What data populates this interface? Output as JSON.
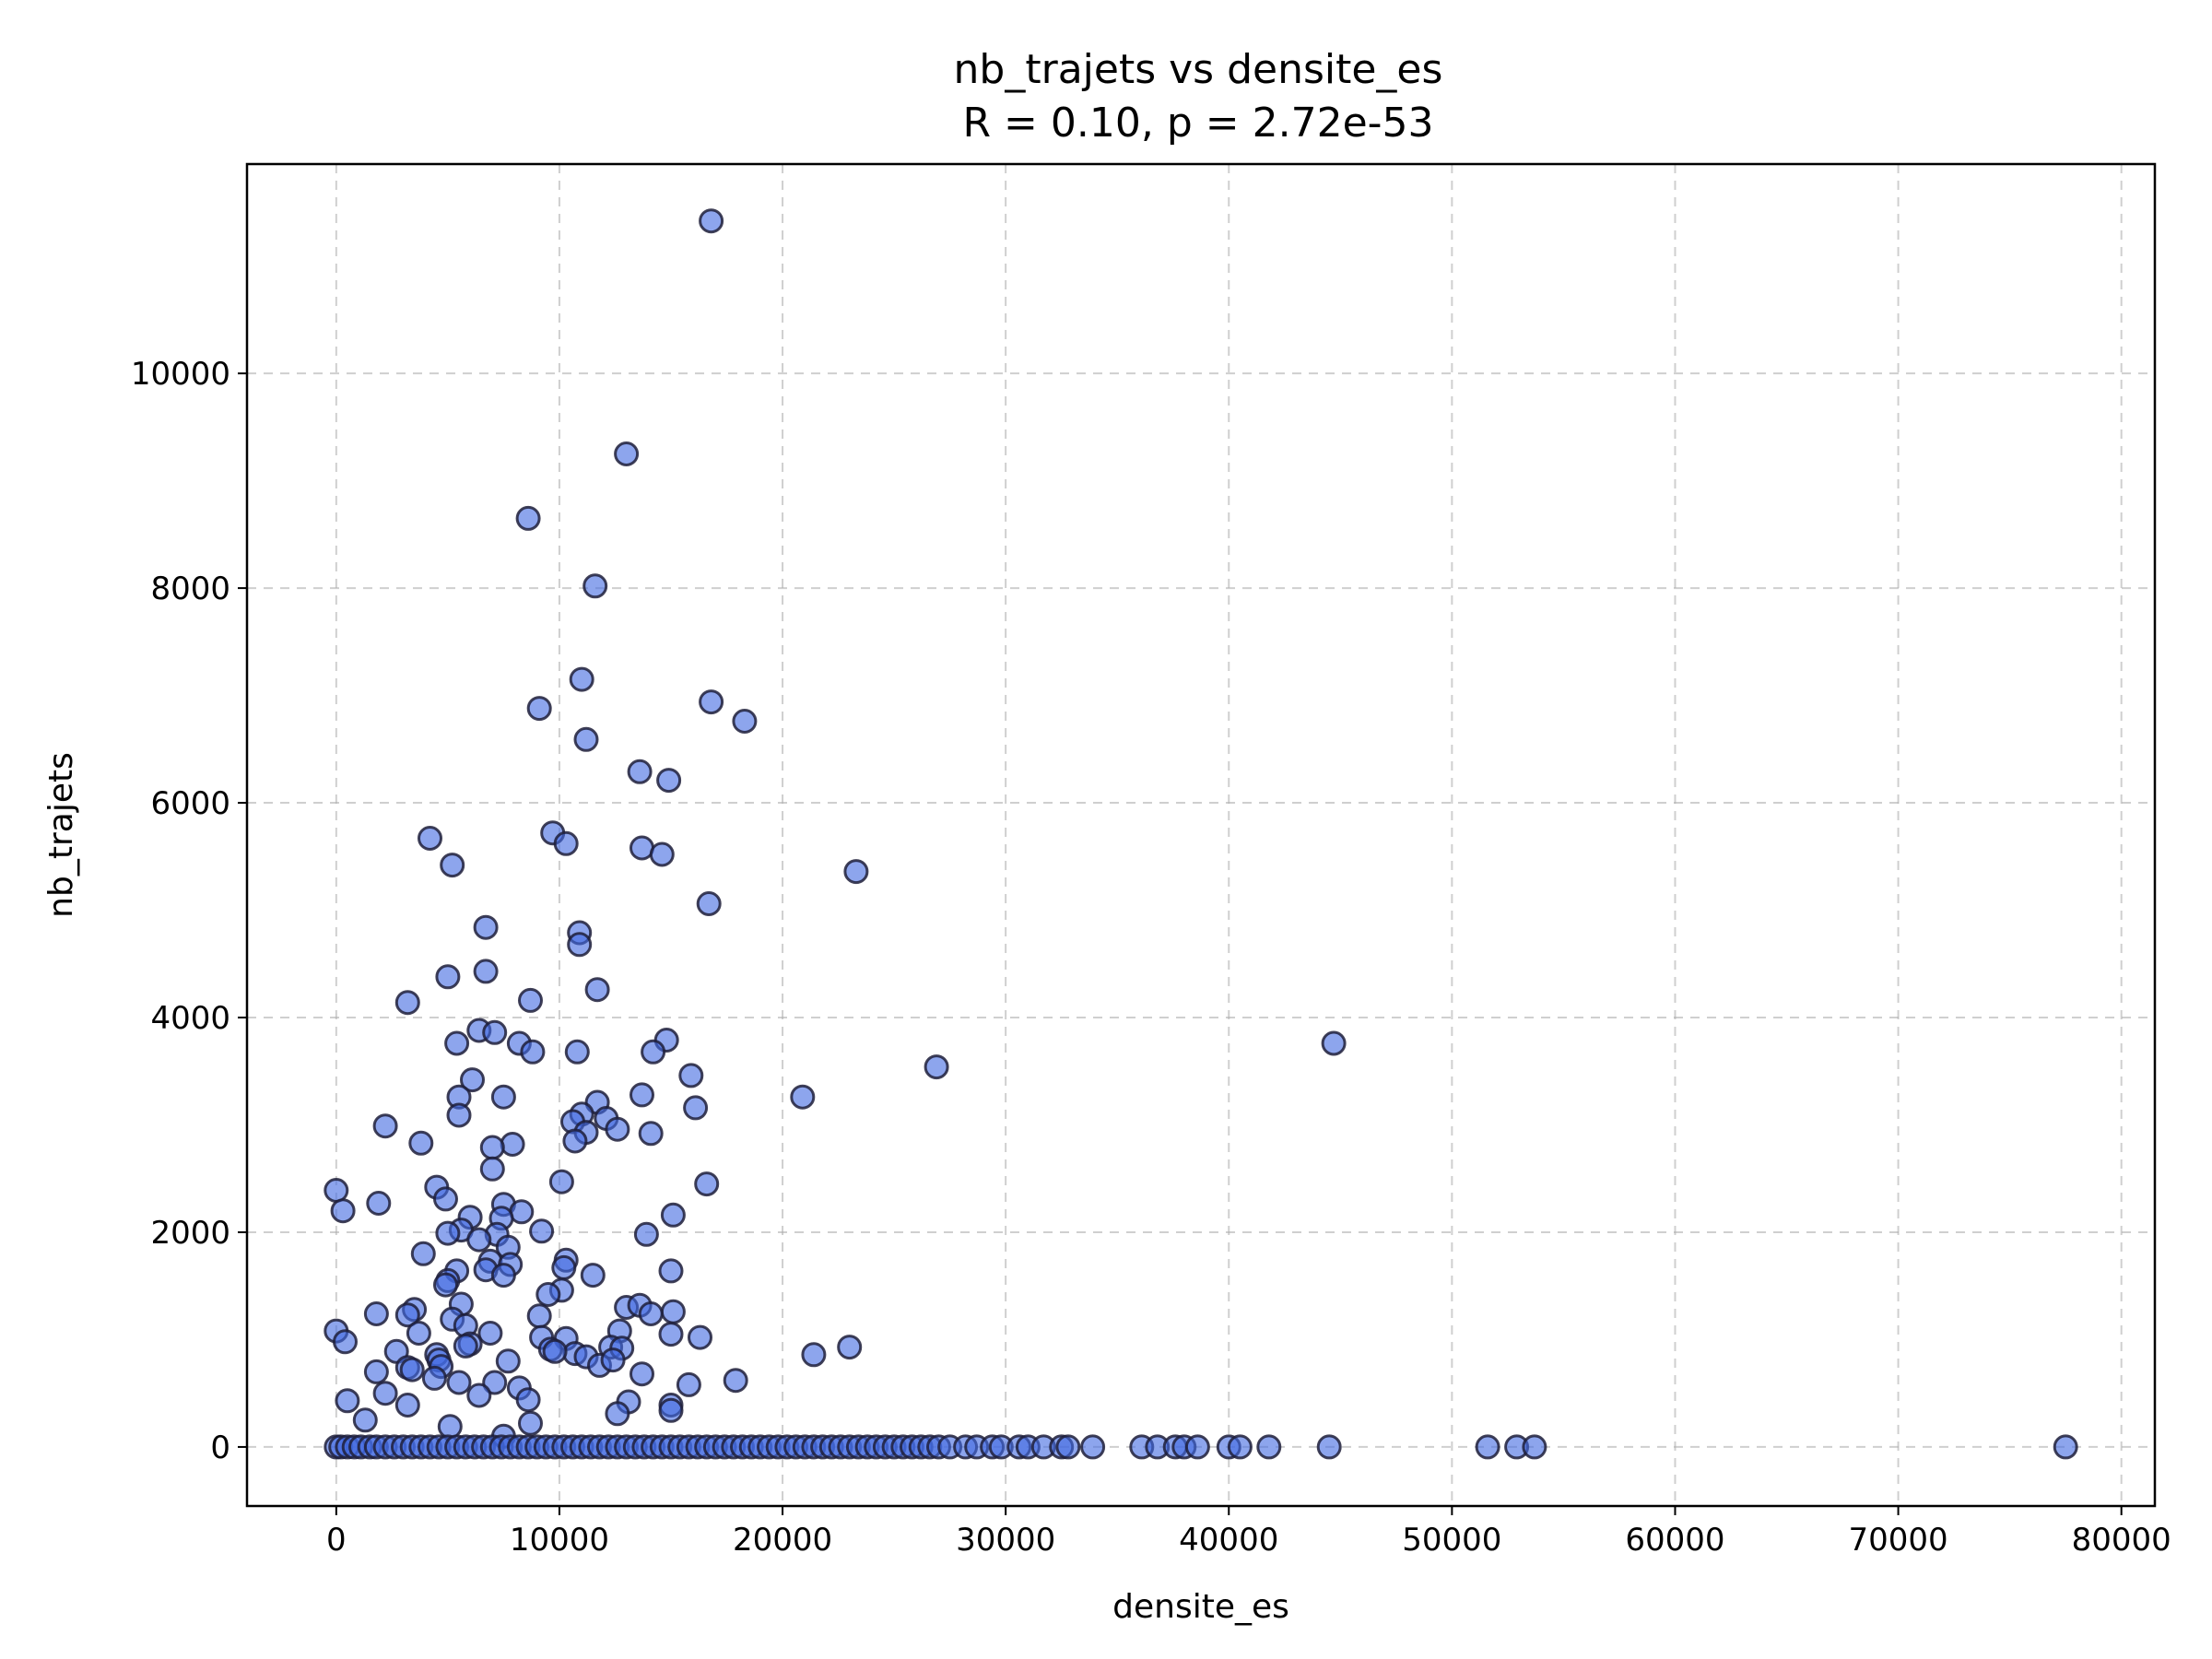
{
  "chart_data": {
    "type": "scatter",
    "title": "nb_trajets vs densite_es",
    "subtitle": "R = 0.10, p = 2.72e-53",
    "xlabel": "densite_es",
    "ylabel": "nb_trajets",
    "xlim": [
      -4000,
      81500
    ],
    "ylim": [
      -550,
      11950
    ],
    "xticks": [
      0,
      10000,
      20000,
      30000,
      40000,
      50000,
      60000,
      70000,
      80000
    ],
    "yticks": [
      0,
      2000,
      4000,
      6000,
      8000,
      10000
    ],
    "grid": true,
    "marker_fill": "#4169e1",
    "marker_fill_opacity": 0.6,
    "marker_edge": "#1f1f3a",
    "points": [
      [
        16800,
        11420
      ],
      [
        13000,
        9250
      ],
      [
        8600,
        8650
      ],
      [
        11600,
        8020
      ],
      [
        11000,
        7150
      ],
      [
        16800,
        6940
      ],
      [
        18300,
        6760
      ],
      [
        9100,
        6880
      ],
      [
        11200,
        6590
      ],
      [
        13600,
        6290
      ],
      [
        14900,
        6210
      ],
      [
        9700,
        5720
      ],
      [
        10300,
        5620
      ],
      [
        4200,
        5670
      ],
      [
        13700,
        5580
      ],
      [
        14600,
        5520
      ],
      [
        5200,
        5420
      ],
      [
        23300,
        5360
      ],
      [
        16700,
        5060
      ],
      [
        6700,
        4840
      ],
      [
        10900,
        4790
      ],
      [
        10900,
        4680
      ],
      [
        6700,
        4430
      ],
      [
        5000,
        4380
      ],
      [
        11700,
        4260
      ],
      [
        8700,
        4160
      ],
      [
        3200,
        4140
      ],
      [
        6400,
        3880
      ],
      [
        7100,
        3860
      ],
      [
        8200,
        3760
      ],
      [
        5400,
        3760
      ],
      [
        14800,
        3790
      ],
      [
        8800,
        3680
      ],
      [
        10800,
        3680
      ],
      [
        14200,
        3680
      ],
      [
        44700,
        3760
      ],
      [
        26900,
        3540
      ],
      [
        15900,
        3460
      ],
      [
        6100,
        3420
      ],
      [
        13700,
        3280
      ],
      [
        5500,
        3260
      ],
      [
        7500,
        3260
      ],
      [
        20900,
        3260
      ],
      [
        11700,
        3210
      ],
      [
        16100,
        3160
      ],
      [
        11000,
        3100
      ],
      [
        12100,
        3060
      ],
      [
        5500,
        3090
      ],
      [
        10600,
        3030
      ],
      [
        2200,
        2990
      ],
      [
        12600,
        2960
      ],
      [
        11200,
        2930
      ],
      [
        14100,
        2920
      ],
      [
        10700,
        2850
      ],
      [
        3800,
        2830
      ],
      [
        7900,
        2820
      ],
      [
        7000,
        2790
      ],
      [
        7000,
        2590
      ],
      [
        10100,
        2470
      ],
      [
        16600,
        2450
      ],
      [
        4500,
        2420
      ],
      [
        0,
        2390
      ],
      [
        4900,
        2310
      ],
      [
        1900,
        2270
      ],
      [
        7500,
        2260
      ],
      [
        300,
        2200
      ],
      [
        8300,
        2190
      ],
      [
        15100,
        2160
      ],
      [
        6000,
        2140
      ],
      [
        7400,
        2130
      ],
      [
        5600,
        2020
      ],
      [
        7200,
        1980
      ],
      [
        13900,
        1980
      ],
      [
        9200,
        2010
      ],
      [
        5000,
        1990
      ],
      [
        6400,
        1930
      ],
      [
        7700,
        1860
      ],
      [
        3900,
        1800
      ],
      [
        6900,
        1730
      ],
      [
        10300,
        1740
      ],
      [
        7800,
        1700
      ],
      [
        6700,
        1650
      ],
      [
        10200,
        1670
      ],
      [
        5400,
        1640
      ],
      [
        15000,
        1640
      ],
      [
        7500,
        1600
      ],
      [
        11500,
        1600
      ],
      [
        5000,
        1550
      ],
      [
        4900,
        1510
      ],
      [
        10100,
        1460
      ],
      [
        9500,
        1420
      ],
      [
        5600,
        1330
      ],
      [
        13000,
        1300
      ],
      [
        13600,
        1320
      ],
      [
        3500,
        1280
      ],
      [
        15100,
        1260
      ],
      [
        3200,
        1230
      ],
      [
        1800,
        1240
      ],
      [
        9100,
        1220
      ],
      [
        14100,
        1240
      ],
      [
        5200,
        1190
      ],
      [
        12700,
        1080
      ],
      [
        5800,
        1130
      ],
      [
        6900,
        1060
      ],
      [
        3700,
        1060
      ],
      [
        9200,
        1020
      ],
      [
        10300,
        1010
      ],
      [
        16300,
        1020
      ],
      [
        15000,
        1050
      ],
      [
        0,
        1080
      ],
      [
        400,
        980
      ],
      [
        23000,
        930
      ],
      [
        6000,
        960
      ],
      [
        5800,
        940
      ],
      [
        12300,
        930
      ],
      [
        12800,
        920
      ],
      [
        9600,
        910
      ],
      [
        10700,
        870
      ],
      [
        11200,
        840
      ],
      [
        2700,
        890
      ],
      [
        9800,
        890
      ],
      [
        11800,
        760
      ],
      [
        12400,
        810
      ],
      [
        21400,
        860
      ],
      [
        4500,
        860
      ],
      [
        4600,
        810
      ],
      [
        7700,
        800
      ],
      [
        3200,
        740
      ],
      [
        3400,
        720
      ],
      [
        4700,
        750
      ],
      [
        4400,
        640
      ],
      [
        1800,
        700
      ],
      [
        13700,
        680
      ],
      [
        7100,
        600
      ],
      [
        17900,
        620
      ],
      [
        15800,
        580
      ],
      [
        5500,
        600
      ],
      [
        8200,
        550
      ],
      [
        2200,
        500
      ],
      [
        6400,
        480
      ],
      [
        8600,
        440
      ],
      [
        13100,
        420
      ],
      [
        500,
        430
      ],
      [
        3200,
        390
      ],
      [
        15000,
        390
      ],
      [
        15000,
        340
      ],
      [
        12600,
        310
      ],
      [
        1300,
        250
      ],
      [
        8700,
        220
      ],
      [
        5100,
        190
      ],
      [
        7500,
        100
      ],
      [
        0,
        0
      ],
      [
        200,
        0
      ],
      [
        500,
        0
      ],
      [
        800,
        0
      ],
      [
        1100,
        0
      ],
      [
        1500,
        0
      ],
      [
        1800,
        0
      ],
      [
        2200,
        0
      ],
      [
        2600,
        0
      ],
      [
        3000,
        0
      ],
      [
        3400,
        0
      ],
      [
        3800,
        0
      ],
      [
        4200,
        0
      ],
      [
        4600,
        0
      ],
      [
        5000,
        0
      ],
      [
        5400,
        0
      ],
      [
        5800,
        0
      ],
      [
        6200,
        0
      ],
      [
        6600,
        0
      ],
      [
        7000,
        0
      ],
      [
        7400,
        0
      ],
      [
        7800,
        0
      ],
      [
        8200,
        0
      ],
      [
        8600,
        0
      ],
      [
        9000,
        0
      ],
      [
        9400,
        0
      ],
      [
        9800,
        0
      ],
      [
        10200,
        0
      ],
      [
        10600,
        0
      ],
      [
        11000,
        0
      ],
      [
        11400,
        0
      ],
      [
        11800,
        0
      ],
      [
        12200,
        0
      ],
      [
        12600,
        0
      ],
      [
        13000,
        0
      ],
      [
        13400,
        0
      ],
      [
        13800,
        0
      ],
      [
        14200,
        0
      ],
      [
        14600,
        0
      ],
      [
        15000,
        0
      ],
      [
        15400,
        0
      ],
      [
        15800,
        0
      ],
      [
        16200,
        0
      ],
      [
        16600,
        0
      ],
      [
        17000,
        0
      ],
      [
        17400,
        0
      ],
      [
        17800,
        0
      ],
      [
        18200,
        0
      ],
      [
        18600,
        0
      ],
      [
        19000,
        0
      ],
      [
        19400,
        0
      ],
      [
        19800,
        0
      ],
      [
        20200,
        0
      ],
      [
        20600,
        0
      ],
      [
        21000,
        0
      ],
      [
        21400,
        0
      ],
      [
        21800,
        0
      ],
      [
        22200,
        0
      ],
      [
        22600,
        0
      ],
      [
        23000,
        0
      ],
      [
        23400,
        0
      ],
      [
        23800,
        0
      ],
      [
        24200,
        0
      ],
      [
        24600,
        0
      ],
      [
        25000,
        0
      ],
      [
        25400,
        0
      ],
      [
        25800,
        0
      ],
      [
        26200,
        0
      ],
      [
        26600,
        0
      ],
      [
        27000,
        0
      ],
      [
        27500,
        0
      ],
      [
        28200,
        0
      ],
      [
        28700,
        0
      ],
      [
        29400,
        0
      ],
      [
        29800,
        0
      ],
      [
        30600,
        0
      ],
      [
        31000,
        0
      ],
      [
        31700,
        0
      ],
      [
        32500,
        0
      ],
      [
        32800,
        0
      ],
      [
        33900,
        0
      ],
      [
        36100,
        0
      ],
      [
        36800,
        0
      ],
      [
        37600,
        0
      ],
      [
        38000,
        0
      ],
      [
        38600,
        0
      ],
      [
        40000,
        0
      ],
      [
        40500,
        0
      ],
      [
        41800,
        0
      ],
      [
        44500,
        0
      ],
      [
        51600,
        0
      ],
      [
        52900,
        0
      ],
      [
        53700,
        0
      ],
      [
        77500,
        0
      ]
    ]
  }
}
